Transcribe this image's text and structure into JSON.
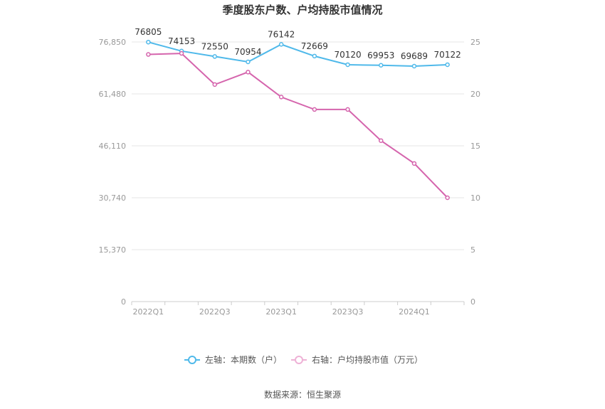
{
  "chart_data": {
    "type": "line",
    "title": "季度股东户数、户均持股市值情况",
    "categories": [
      "2022Q1",
      "2022Q2",
      "2022Q3",
      "2022Q4",
      "2023Q1",
      "2023Q2",
      "2023Q3",
      "2023Q4",
      "2024Q1",
      "2024Q2"
    ],
    "x_tick_labels": [
      "2022Q1",
      "2022Q3",
      "2023Q1",
      "2023Q3",
      "2024Q1"
    ],
    "left_axis": {
      "ticks": [
        "0",
        "15,370",
        "30,740",
        "46,110",
        "61,480",
        "76,850"
      ],
      "range": [
        0,
        76850
      ]
    },
    "right_axis": {
      "ticks": [
        "0",
        "5",
        "10",
        "15",
        "20",
        "25"
      ],
      "range": [
        0,
        25
      ]
    },
    "series": [
      {
        "name": "左轴：本期数（户）",
        "axis": "left",
        "color": "#4fb9ea",
        "values": [
          76805,
          74153,
          72550,
          70954,
          76142,
          72669,
          70120,
          69953,
          69689,
          70122
        ],
        "labels": [
          "76805",
          "74153",
          "72550",
          "70954",
          "76142",
          "72669",
          "70120",
          "69953",
          "69689",
          "70122"
        ]
      },
      {
        "name": "右轴：户均持股市值（万元）",
        "axis": "right",
        "color": "#d565ad",
        "values": [
          23.8,
          23.9,
          20.9,
          22.1,
          19.7,
          18.5,
          18.5,
          15.5,
          13.3,
          10.0
        ]
      }
    ],
    "legend_position": "bottom",
    "grid": true
  },
  "source_text": "数据来源：恒生聚源"
}
